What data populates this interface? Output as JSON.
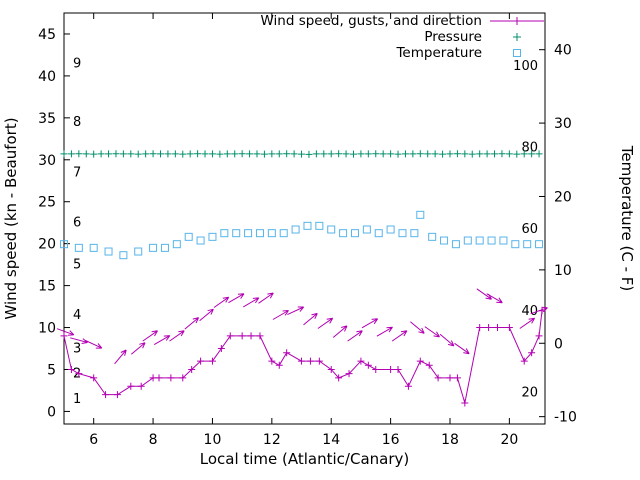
{
  "colors": {
    "wind": "#b300b3",
    "pressure": "#008f6b",
    "temperature": "#56b4e9",
    "axis": "#000000",
    "background": "#ffffff"
  },
  "legend": {
    "items": [
      {
        "key": "wind",
        "label": "Wind speed, gusts, and direction"
      },
      {
        "key": "pressure",
        "label": "Pressure"
      },
      {
        "key": "temperature",
        "label": "Temperature"
      }
    ]
  },
  "chart_data": {
    "type": "line",
    "title": "",
    "xlabel": "Local time (Atlantic/Canary)",
    "ylabel_left": "Wind speed (kn - Beaufort)",
    "ylabel_right": "Temperature (C - F)",
    "xlim": [
      5,
      21.2
    ],
    "x_ticks": [
      6,
      8,
      10,
      12,
      14,
      16,
      18,
      20
    ],
    "ylim_left": [
      -1.5,
      47.5
    ],
    "y_ticks_left": [
      0,
      5,
      10,
      15,
      20,
      25,
      30,
      35,
      40,
      45
    ],
    "ylim_right": [
      -11,
      45
    ],
    "y_ticks_right": [
      -10,
      0,
      10,
      20,
      30,
      40
    ],
    "beaufort_scale_labels": [
      {
        "label": "1",
        "kn": 1.5
      },
      {
        "label": "2",
        "kn": 4.5
      },
      {
        "label": "3",
        "kn": 7.5
      },
      {
        "label": "4",
        "kn": 11.5
      },
      {
        "label": "5",
        "kn": 17.5
      },
      {
        "label": "6",
        "kn": 22.5
      },
      {
        "label": "7",
        "kn": 28.5
      },
      {
        "label": "8",
        "kn": 34.5
      },
      {
        "label": "9",
        "kn": 41.5
      }
    ],
    "fahrenheit_scale_labels": [
      {
        "label": "20",
        "c": -6.7
      },
      {
        "label": "40",
        "c": 4.4
      },
      {
        "label": "60",
        "c": 15.6
      },
      {
        "label": "80",
        "c": 26.7
      },
      {
        "label": "100",
        "c": 37.8
      }
    ],
    "series": [
      {
        "key": "wind",
        "name": "Wind speed, gusts, and direction",
        "type": "line+points",
        "marker": "plus",
        "axis": "left",
        "x": [
          5.0,
          5.25,
          5.5,
          6.0,
          6.4,
          6.8,
          7.25,
          7.6,
          8.0,
          8.2,
          8.6,
          9.0,
          9.3,
          9.6,
          10.0,
          10.3,
          10.6,
          11.0,
          11.3,
          11.6,
          12.0,
          12.25,
          12.5,
          13.0,
          13.3,
          13.6,
          14.0,
          14.25,
          14.6,
          15.0,
          15.25,
          15.5,
          16.0,
          16.25,
          16.6,
          17.0,
          17.3,
          17.6,
          18.0,
          18.25,
          18.5,
          19.0,
          19.3,
          19.6,
          20.0,
          20.5,
          20.75,
          21.0,
          21.1
        ],
        "y": [
          9,
          5,
          4.5,
          4,
          2,
          2,
          3,
          3,
          4,
          4,
          4,
          4,
          5,
          6,
          6,
          7.5,
          9,
          9,
          9,
          9,
          6,
          5.5,
          7,
          6,
          6,
          6,
          5,
          4,
          4.5,
          6,
          5.5,
          5,
          5,
          5,
          3,
          6,
          5.5,
          4,
          4,
          4,
          1,
          10,
          10,
          10,
          10,
          6,
          7,
          9,
          12
        ]
      },
      {
        "key": "pressure",
        "name": "Pressure",
        "type": "points",
        "marker": "plus",
        "axis": "left",
        "x_start": 5,
        "x_step": 0.25,
        "values": [
          30.7,
          30.7,
          30.72,
          30.7,
          30.68,
          30.7,
          30.7,
          30.72,
          30.7,
          30.7,
          30.68,
          30.7,
          30.72,
          30.7,
          30.7,
          30.7,
          30.68,
          30.7,
          30.72,
          30.7,
          30.7,
          30.68,
          30.7,
          30.7,
          30.72,
          30.7,
          30.7,
          30.68,
          30.7,
          30.7,
          30.72,
          30.7,
          30.68,
          30.65,
          30.7,
          30.7,
          30.7,
          30.72,
          30.7,
          30.68,
          30.7,
          30.7,
          30.72,
          30.7,
          30.7,
          30.68,
          30.7,
          30.7,
          30.72,
          30.7,
          30.7,
          30.68,
          30.7,
          30.72,
          30.7,
          30.68,
          30.7,
          30.7,
          30.7,
          30.72,
          30.7,
          30.68,
          30.7,
          30.7,
          30.7
        ]
      },
      {
        "key": "temperature",
        "name": "Temperature",
        "type": "points",
        "marker": "open-square",
        "axis": "right",
        "x": [
          5,
          5.5,
          6,
          6.5,
          7,
          7.5,
          8,
          8.4,
          8.8,
          9.2,
          9.6,
          10,
          10.4,
          10.8,
          11.2,
          11.6,
          12,
          12.4,
          12.8,
          13.2,
          13.6,
          14,
          14.4,
          14.8,
          15.2,
          15.6,
          16,
          16.4,
          16.8,
          17.0,
          17.4,
          17.8,
          18.2,
          18.6,
          19,
          19.4,
          19.8,
          20.2,
          20.6,
          21
        ],
        "y": [
          13.5,
          13,
          13,
          12.5,
          12,
          12.5,
          13,
          13,
          13.5,
          14.5,
          14,
          14.5,
          15,
          15,
          15,
          15,
          15,
          15,
          15.5,
          16,
          16,
          15.5,
          15,
          15,
          15.5,
          15,
          15.5,
          15,
          15,
          17.5,
          14.5,
          14,
          13.5,
          14,
          14,
          14,
          14,
          13.5,
          13.5,
          13.5
        ]
      }
    ],
    "wind_direction_arrows": [
      {
        "x": 5.05,
        "kn": 9.5,
        "angle_deg": -20
      },
      {
        "x": 5.5,
        "kn": 8.5,
        "angle_deg": -15
      },
      {
        "x": 6.0,
        "kn": 8.0,
        "angle_deg": -25
      },
      {
        "x": 6.9,
        "kn": 6.5,
        "angle_deg": 50
      },
      {
        "x": 7.5,
        "kn": 7.5,
        "angle_deg": 40
      },
      {
        "x": 7.9,
        "kn": 9.0,
        "angle_deg": 35
      },
      {
        "x": 8.3,
        "kn": 8.5,
        "angle_deg": 30
      },
      {
        "x": 8.8,
        "kn": 9.0,
        "angle_deg": 35
      },
      {
        "x": 9.3,
        "kn": 10.5,
        "angle_deg": 40
      },
      {
        "x": 9.8,
        "kn": 11.5,
        "angle_deg": 40
      },
      {
        "x": 10.3,
        "kn": 13.0,
        "angle_deg": 35
      },
      {
        "x": 10.8,
        "kn": 13.5,
        "angle_deg": 30
      },
      {
        "x": 11.3,
        "kn": 13.0,
        "angle_deg": 30
      },
      {
        "x": 11.8,
        "kn": 13.5,
        "angle_deg": 35
      },
      {
        "x": 12.3,
        "kn": 11.5,
        "angle_deg": 30
      },
      {
        "x": 12.8,
        "kn": 12.0,
        "angle_deg": 25
      },
      {
        "x": 13.3,
        "kn": 11.0,
        "angle_deg": 40
      },
      {
        "x": 13.8,
        "kn": 10.5,
        "angle_deg": 35
      },
      {
        "x": 14.3,
        "kn": 9.5,
        "angle_deg": 40
      },
      {
        "x": 14.8,
        "kn": 9.0,
        "angle_deg": 35
      },
      {
        "x": 15.3,
        "kn": 10.5,
        "angle_deg": 30
      },
      {
        "x": 15.8,
        "kn": 9.5,
        "angle_deg": 30
      },
      {
        "x": 16.3,
        "kn": 9.0,
        "angle_deg": 35
      },
      {
        "x": 16.9,
        "kn": 10.0,
        "angle_deg": -40
      },
      {
        "x": 17.4,
        "kn": 9.5,
        "angle_deg": -35
      },
      {
        "x": 17.9,
        "kn": 8.5,
        "angle_deg": -40
      },
      {
        "x": 18.4,
        "kn": 7.5,
        "angle_deg": -35
      },
      {
        "x": 19.15,
        "kn": 14.0,
        "angle_deg": -35
      },
      {
        "x": 19.5,
        "kn": 13.5,
        "angle_deg": -30
      },
      {
        "x": 20.6,
        "kn": 10.5,
        "angle_deg": 35
      },
      {
        "x": 21.0,
        "kn": 12.0,
        "angle_deg": 20
      }
    ]
  }
}
